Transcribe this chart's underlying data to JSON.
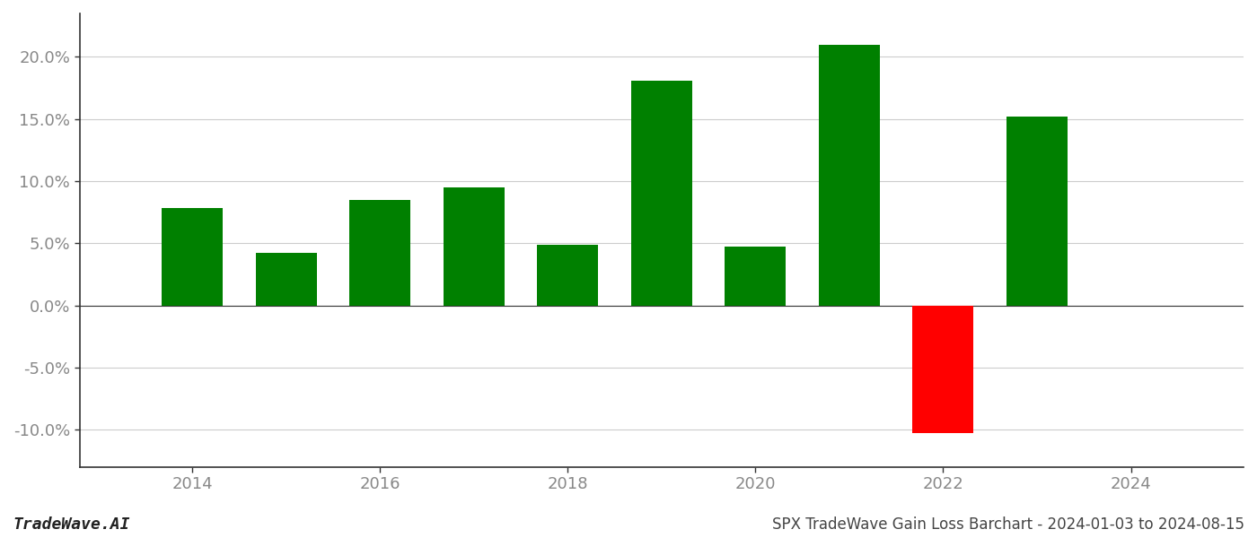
{
  "years": [
    2014,
    2015,
    2016,
    2017,
    2018,
    2019,
    2020,
    2021,
    2022,
    2023
  ],
  "values": [
    0.078,
    0.042,
    0.085,
    0.095,
    0.049,
    0.181,
    0.047,
    0.21,
    -0.103,
    0.152
  ],
  "colors": [
    "#008000",
    "#008000",
    "#008000",
    "#008000",
    "#008000",
    "#008000",
    "#008000",
    "#008000",
    "#ff0000",
    "#008000"
  ],
  "ylim": [
    -0.13,
    0.235
  ],
  "yticks": [
    -0.1,
    -0.05,
    0.0,
    0.05,
    0.1,
    0.15,
    0.2
  ],
  "bar_width": 0.65,
  "title": "SPX TradeWave Gain Loss Barchart - 2024-01-03 to 2024-08-15",
  "watermark": "TradeWave.AI",
  "bg_color": "#ffffff",
  "grid_color": "#cccccc",
  "axis_color": "#888888",
  "spine_color": "#333333",
  "axis_label_color": "#888888",
  "title_fontsize": 12,
  "watermark_fontsize": 13,
  "tick_fontsize": 13,
  "xlim_left": 2012.8,
  "xlim_right": 2025.2
}
